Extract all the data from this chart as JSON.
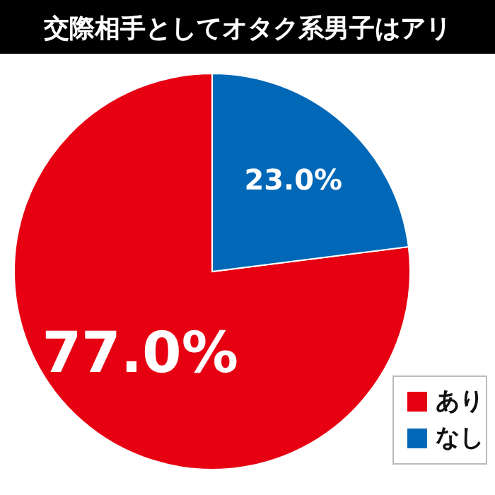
{
  "chart_data": {
    "type": "pie",
    "title": "交際相手としてオタク系男子はアリ",
    "categories": [
      "あり",
      "なし"
    ],
    "values": [
      77.0,
      23.0
    ],
    "colors": [
      "#e60012",
      "#0068b7"
    ],
    "value_labels": [
      "77.0%",
      "23.0%"
    ],
    "legend": "bottom right"
  }
}
